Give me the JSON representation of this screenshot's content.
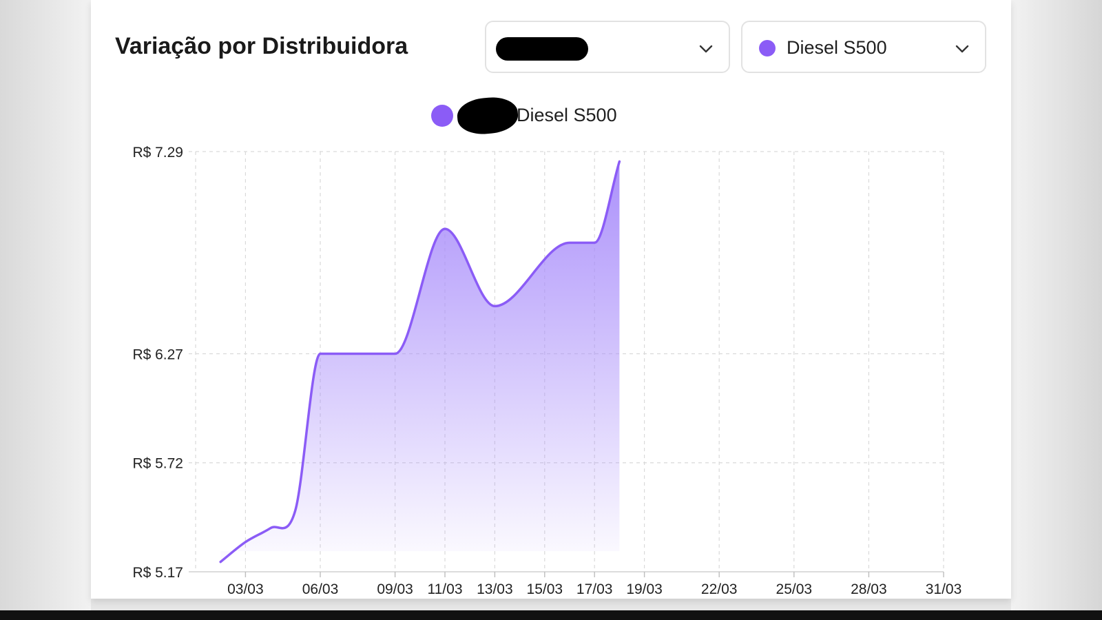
{
  "header": {
    "title": "Variação por Distribuidora"
  },
  "filters": {
    "distributor": {
      "value": "",
      "redacted": true,
      "icon": "chevron-down-icon"
    },
    "fuel": {
      "value": "Diesel S500",
      "color": "#8b5cf6",
      "icon": "chevron-down-icon"
    }
  },
  "colors": {
    "series": "#8b5cf6",
    "fill_top": "#a78bfa"
  },
  "chart_data": {
    "type": "area",
    "title": "",
    "xlabel": "",
    "ylabel": "",
    "legend": {
      "entries": [
        "Diesel S500"
      ],
      "position": "top-center",
      "redacted_prefix": true
    },
    "grid": true,
    "ylim": [
      5.17,
      7.29
    ],
    "yticks": [
      5.17,
      5.72,
      6.27,
      7.29
    ],
    "ytick_labels": [
      "R$ 5.17",
      "R$ 5.72",
      "R$ 6.27",
      "R$ 7.29"
    ],
    "xrange": [
      "2025-03-01",
      "2025-03-31"
    ],
    "xticks": [
      "2025-03-03",
      "2025-03-06",
      "2025-03-09",
      "2025-03-11",
      "2025-03-13",
      "2025-03-15",
      "2025-03-17",
      "2025-03-19",
      "2025-03-22",
      "2025-03-25",
      "2025-03-28",
      "2025-03-31"
    ],
    "xtick_labels": [
      "03/03",
      "06/03",
      "09/03",
      "11/03",
      "13/03",
      "15/03",
      "17/03",
      "19/03",
      "22/03",
      "25/03",
      "28/03",
      "31/03"
    ],
    "series": [
      {
        "name": "Diesel S500",
        "x": [
          "2025-03-02",
          "2025-03-03",
          "2025-03-04",
          "2025-03-05",
          "2025-03-06",
          "2025-03-09",
          "2025-03-11",
          "2025-03-13",
          "2025-03-16",
          "2025-03-17",
          "2025-03-18"
        ],
        "values": [
          5.22,
          5.32,
          5.39,
          5.48,
          6.27,
          6.27,
          6.9,
          6.51,
          6.83,
          6.83,
          7.24
        ]
      }
    ]
  }
}
